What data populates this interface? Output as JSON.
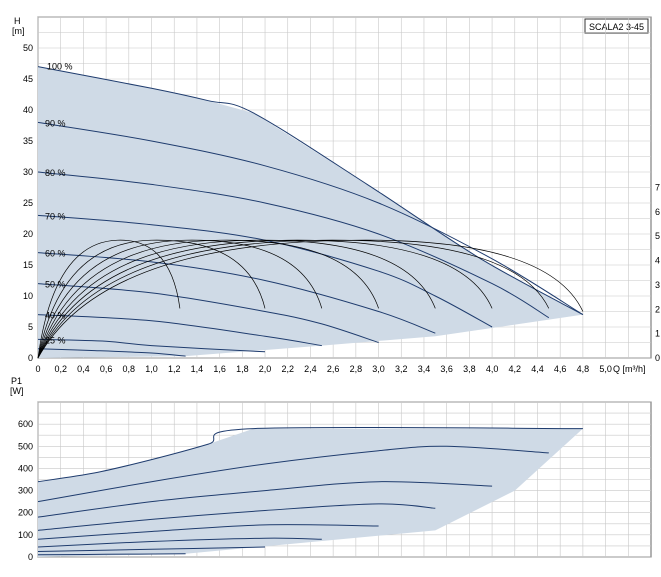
{
  "colors": {
    "curve": "#1f3c6e",
    "fill": "#cfdae6",
    "grid": "#c8c8c8",
    "frame": "#666666",
    "efficiency": "#000000"
  },
  "chart_data": [
    {
      "type": "line",
      "title": "SCALA2 3-45",
      "ylabel": "H\n[m]",
      "xlabel": "Q [m³/h]",
      "xlim": [
        0,
        5.4
      ],
      "ylim": [
        0,
        55
      ],
      "x_ticks": [
        0,
        0.2,
        0.4,
        0.6,
        0.8,
        1.0,
        1.2,
        1.4,
        1.6,
        1.8,
        2.0,
        2.2,
        2.4,
        2.6,
        2.8,
        3.0,
        3.2,
        3.4,
        3.6,
        3.8,
        4.0,
        4.2,
        4.4,
        4.6,
        4.8,
        5.0
      ],
      "x_tick_labels": [
        "0",
        "0,2",
        "0,4",
        "0,6",
        "0,8",
        "1,0",
        "1,2",
        "1,4",
        "1,6",
        "1,8",
        "2,0",
        "2,2",
        "2,4",
        "2,6",
        "2,8",
        "3,0",
        "3,2",
        "3,4",
        "3,6",
        "3,8",
        "4,0",
        "4,2",
        "4,4",
        "4,6",
        "4,8",
        "5,0"
      ],
      "y_ticks": [
        0,
        5,
        10,
        15,
        20,
        25,
        30,
        35,
        40,
        45,
        50
      ],
      "y_tick_labels": [
        "0",
        "5",
        "10",
        "15",
        "20",
        "25",
        "30",
        "35",
        "40",
        "45",
        "50"
      ],
      "right_axis_ticks": [
        0,
        1,
        2,
        3,
        4,
        5,
        6,
        7
      ],
      "right_axis_label": "",
      "grid": true,
      "series": [
        {
          "name": "100 %",
          "x": [
            0,
            1.0,
            1.5,
            1.9,
            2.9,
            3.9,
            4.8
          ],
          "y": [
            47,
            43.5,
            41.5,
            39.5,
            28,
            16,
            7
          ]
        },
        {
          "name": "90 %",
          "x": [
            0,
            1.0,
            2.0,
            3.0,
            4.0,
            4.8
          ],
          "y": [
            38,
            35,
            31,
            25,
            16,
            7
          ]
        },
        {
          "name": "80 %",
          "x": [
            0,
            1.0,
            2.0,
            3.0,
            4.0,
            4.5
          ],
          "y": [
            30,
            28,
            25,
            20,
            12,
            6.5
          ]
        },
        {
          "name": "70 %",
          "x": [
            0,
            1.0,
            2.0,
            3.0,
            3.5,
            4.0
          ],
          "y": [
            23,
            21.5,
            19,
            14,
            10,
            5
          ]
        },
        {
          "name": "60 %",
          "x": [
            0,
            1.0,
            2.0,
            3.0,
            3.5
          ],
          "y": [
            17,
            15.5,
            12.5,
            7.5,
            4
          ]
        },
        {
          "name": "50 %",
          "x": [
            0,
            1.0,
            2.0,
            2.5,
            3.0
          ],
          "y": [
            12,
            10.5,
            7.5,
            5.5,
            2.5
          ]
        },
        {
          "name": "40 %",
          "x": [
            0,
            1.0,
            2.0,
            2.5
          ],
          "y": [
            7,
            6,
            3.5,
            2
          ]
        },
        {
          "name": "25 %",
          "x": [
            0,
            0.6,
            1.0,
            2.0
          ],
          "y": [
            3,
            2.7,
            2.0,
            1
          ]
        },
        {
          "name": "",
          "x": [
            0,
            0.5,
            1.0,
            1.3
          ],
          "y": [
            1.5,
            1.2,
            0.8,
            0.3
          ]
        }
      ],
      "curve_labels": [
        "100 %",
        "90 %",
        "80 %",
        "70 %",
        "60 %",
        "50 %",
        "40 %",
        "25 %"
      ],
      "efficiency_arcs": [
        {
          "x0": 0.3,
          "peak_x": 0.7,
          "peak_y": 19,
          "x1": 1.25,
          "y1": 8
        },
        {
          "x0": 0.3,
          "peak_x": 1.0,
          "peak_y": 19,
          "x1": 2.0,
          "y1": 8
        },
        {
          "x0": 0.3,
          "peak_x": 1.3,
          "peak_y": 19,
          "x1": 2.5,
          "y1": 8
        },
        {
          "x0": 0.3,
          "peak_x": 1.6,
          "peak_y": 19,
          "x1": 3.0,
          "y1": 8
        },
        {
          "x0": 0.3,
          "peak_x": 1.9,
          "peak_y": 19,
          "x1": 3.5,
          "y1": 8
        },
        {
          "x0": 0.3,
          "peak_x": 2.2,
          "peak_y": 19,
          "x1": 4.0,
          "y1": 8
        },
        {
          "x0": 0.3,
          "peak_x": 2.5,
          "peak_y": 19,
          "x1": 4.5,
          "y1": 8
        },
        {
          "x0": 0.3,
          "peak_x": 2.8,
          "peak_y": 19,
          "x1": 4.8,
          "y1": 7.5
        }
      ]
    },
    {
      "type": "line",
      "title": "",
      "ylabel": "P1\n[W]",
      "xlabel": "",
      "xlim": [
        0,
        5.4
      ],
      "ylim": [
        0,
        700
      ],
      "y_ticks": [
        0,
        100,
        200,
        300,
        400,
        500,
        600
      ],
      "y_tick_labels": [
        "0",
        "100",
        "200",
        "300",
        "400",
        "500",
        "600"
      ],
      "grid": true,
      "series": [
        {
          "name": "100 %",
          "x": [
            0,
            0.5,
            1.0,
            1.5,
            1.9,
            4.8
          ],
          "y": [
            340,
            380,
            440,
            510,
            580,
            580
          ]
        },
        {
          "name": "90 %",
          "x": [
            0,
            1.0,
            2.0,
            3.0,
            3.6,
            4.5
          ],
          "y": [
            250,
            340,
            420,
            480,
            500,
            470
          ]
        },
        {
          "name": "80 %",
          "x": [
            0,
            1.0,
            2.0,
            3.0,
            4.0
          ],
          "y": [
            180,
            250,
            300,
            340,
            320
          ]
        },
        {
          "name": "70 %",
          "x": [
            0,
            1.0,
            2.0,
            3.0,
            3.5
          ],
          "y": [
            120,
            170,
            210,
            240,
            220
          ]
        },
        {
          "name": "60 %",
          "x": [
            0,
            1.0,
            2.0,
            3.0
          ],
          "y": [
            80,
            115,
            145,
            140
          ]
        },
        {
          "name": "50 %",
          "x": [
            0,
            1.0,
            2.0,
            2.5
          ],
          "y": [
            45,
            70,
            85,
            80
          ]
        },
        {
          "name": "40 %",
          "x": [
            0,
            1.0,
            2.0
          ],
          "y": [
            25,
            35,
            45
          ]
        },
        {
          "name": "25 %",
          "x": [
            0,
            0.6,
            1.3
          ],
          "y": [
            10,
            12,
            15
          ]
        }
      ]
    }
  ]
}
